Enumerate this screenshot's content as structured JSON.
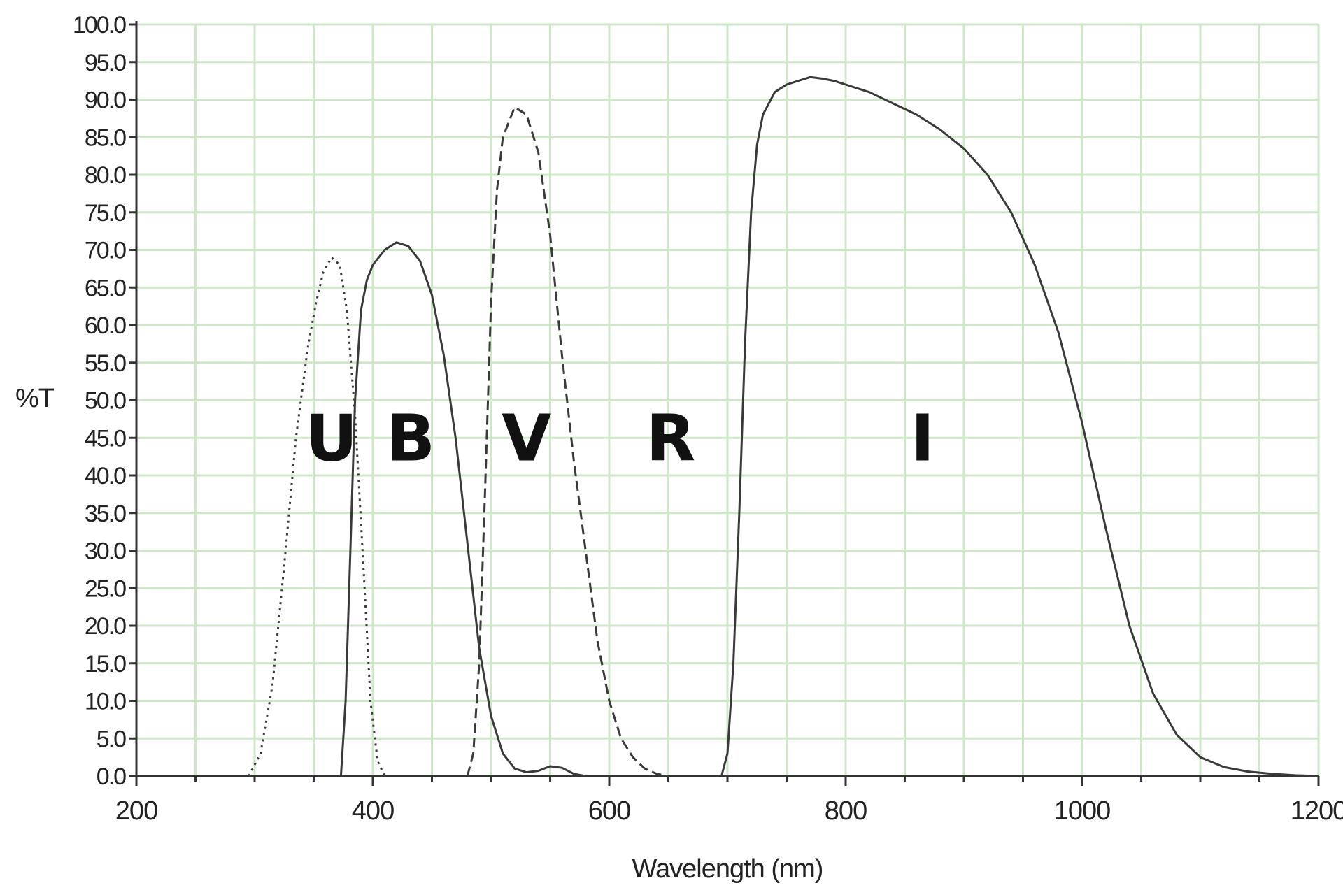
{
  "chart_data": {
    "type": "line",
    "xlabel": "Wavelength (nm)",
    "ylabel": "%T",
    "xlim": [
      200,
      1200
    ],
    "ylim": [
      0,
      100
    ],
    "x_ticks": [
      "200",
      "400",
      "600",
      "800",
      "1000",
      "1200"
    ],
    "x_tick_values": [
      200,
      400,
      600,
      800,
      1000,
      1200
    ],
    "x_minor_step": 50,
    "y_ticks": [
      "0.0",
      "5.0",
      "10.0",
      "15.0",
      "20.0",
      "25.0",
      "30.0",
      "35.0",
      "40.0",
      "45.0",
      "50.0",
      "55.0",
      "60.0",
      "65.0",
      "70.0",
      "75.0",
      "80.0",
      "85.0",
      "90.0",
      "95.0",
      "100.0"
    ],
    "y_tick_values": [
      0,
      5,
      10,
      15,
      20,
      25,
      30,
      35,
      40,
      45,
      50,
      55,
      60,
      65,
      70,
      75,
      80,
      85,
      90,
      95,
      100
    ],
    "grid": true,
    "grid_color": "#cfe7c9",
    "line_color": "#3a3a3a",
    "series": [
      {
        "name": "U",
        "style": "dotted",
        "x": [
          295,
          305,
          315,
          325,
          335,
          345,
          352,
          358,
          365,
          372,
          378,
          385,
          392,
          398,
          404,
          410
        ],
        "y": [
          0,
          3,
          12,
          28,
          45,
          57,
          63,
          67,
          69,
          68,
          62,
          48,
          28,
          10,
          2,
          0
        ]
      },
      {
        "name": "B",
        "style": "solid",
        "x": [
          373,
          377,
          381,
          385,
          390,
          395,
          400,
          410,
          420,
          430,
          440,
          450,
          460,
          470,
          480,
          490,
          500,
          510,
          520,
          530,
          540,
          550,
          560,
          570,
          580
        ],
        "y": [
          0,
          10,
          30,
          50,
          62,
          66,
          68,
          70,
          71,
          70.5,
          68.5,
          64,
          56,
          45,
          31,
          17,
          8,
          3,
          1,
          0.5,
          0.7,
          1.3,
          1.1,
          0.3,
          0
        ]
      },
      {
        "name": "V",
        "style": "dashed",
        "x": [
          480,
          485,
          490,
          495,
          500,
          505,
          510,
          520,
          530,
          540,
          550,
          560,
          570,
          580,
          590,
          600,
          610,
          620,
          630,
          640,
          650
        ],
        "y": [
          0,
          3,
          15,
          38,
          63,
          78,
          85,
          89,
          88,
          83,
          72,
          56,
          42,
          30,
          18,
          10,
          5,
          2.5,
          1,
          0.3,
          0
        ]
      },
      {
        "name": "I",
        "style": "solid",
        "x": [
          695,
          700,
          705,
          710,
          715,
          720,
          725,
          730,
          740,
          750,
          760,
          770,
          780,
          790,
          800,
          820,
          840,
          860,
          880,
          900,
          920,
          940,
          960,
          980,
          1000,
          1020,
          1040,
          1060,
          1080,
          1100,
          1120,
          1140,
          1160,
          1180,
          1200
        ],
        "y": [
          0,
          3,
          15,
          35,
          58,
          75,
          84,
          88,
          91,
          92,
          92.5,
          93,
          92.8,
          92.5,
          92,
          91,
          89.5,
          88,
          86,
          83.5,
          80,
          75,
          68,
          59,
          47,
          33,
          20,
          11,
          5.5,
          2.5,
          1.2,
          0.6,
          0.3,
          0.1,
          0
        ]
      }
    ],
    "annotations": [
      {
        "text": "U",
        "x": 365,
        "y": 42
      },
      {
        "text": "B",
        "x": 432,
        "y": 42
      },
      {
        "text": "V",
        "x": 530,
        "y": 42
      },
      {
        "text": "R",
        "x": 652,
        "y": 42
      },
      {
        "text": "I",
        "x": 865,
        "y": 42
      }
    ]
  }
}
